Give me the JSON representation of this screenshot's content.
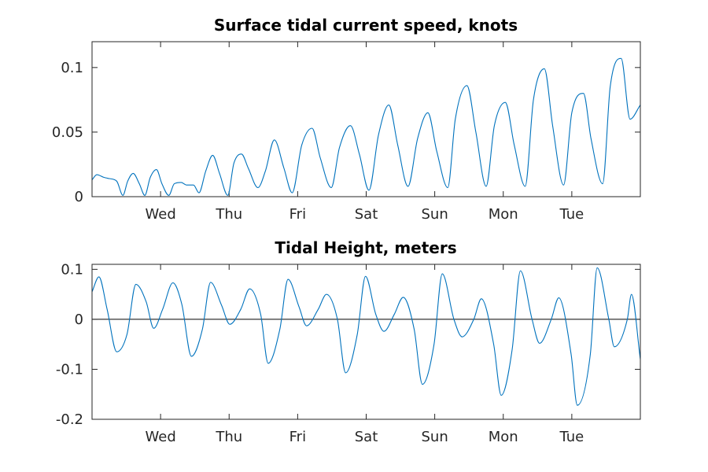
{
  "colors": {
    "series": "#0072BD",
    "axis": "#262626",
    "zero_line": "#000000"
  },
  "chart_data": [
    {
      "type": "line",
      "title": "Surface tidal current speed, knots",
      "xlabel": "",
      "ylabel": "",
      "ylim": [
        0,
        0.12
      ],
      "xlim": [
        0,
        8
      ],
      "grid": false,
      "x_ticks": [
        {
          "value": 1,
          "label": "Wed"
        },
        {
          "value": 2,
          "label": "Thu"
        },
        {
          "value": 3,
          "label": "Fri"
        },
        {
          "value": 4,
          "label": "Sat"
        },
        {
          "value": 5,
          "label": "Sun"
        },
        {
          "value": 6,
          "label": "Mon"
        },
        {
          "value": 7,
          "label": "Tue"
        }
      ],
      "y_ticks": [
        {
          "value": 0,
          "label": "0"
        },
        {
          "value": 0.05,
          "label": "0.05"
        },
        {
          "value": 0.1,
          "label": "0.1"
        }
      ],
      "series": [
        {
          "x": [
            0,
            0.07,
            0.17,
            0.25,
            0.36,
            0.45,
            0.52,
            0.6,
            0.69,
            0.77,
            0.85,
            0.94,
            1.02,
            1.12,
            1.2,
            1.3,
            1.38,
            1.48,
            1.56,
            1.66,
            1.76,
            1.86,
            1.98,
            2.07,
            2.18,
            2.28,
            2.42,
            2.53,
            2.66,
            2.8,
            2.92,
            3.06,
            3.21,
            3.33,
            3.49,
            3.61,
            3.77,
            3.9,
            4.04,
            4.18,
            4.33,
            4.46,
            4.61,
            4.75,
            4.9,
            5.03,
            5.19,
            5.3,
            5.47,
            5.6,
            5.75,
            5.87,
            6.03,
            6.16,
            6.32,
            6.44,
            6.6,
            6.72,
            6.88,
            7.0,
            7.17,
            7.28,
            7.45,
            7.56,
            7.72,
            7.85,
            8.0
          ],
          "y": [
            0.013,
            0.017,
            0.015,
            0.014,
            0.012,
            0.001,
            0.012,
            0.018,
            0.01,
            0.001,
            0.015,
            0.021,
            0.01,
            0.001,
            0.01,
            0.011,
            0.009,
            0.009,
            0.003,
            0.02,
            0.032,
            0.018,
            0.001,
            0.026,
            0.033,
            0.022,
            0.007,
            0.02,
            0.044,
            0.022,
            0.003,
            0.04,
            0.053,
            0.03,
            0.007,
            0.038,
            0.055,
            0.033,
            0.005,
            0.048,
            0.071,
            0.04,
            0.008,
            0.045,
            0.065,
            0.035,
            0.007,
            0.06,
            0.086,
            0.05,
            0.008,
            0.055,
            0.073,
            0.04,
            0.008,
            0.075,
            0.099,
            0.055,
            0.009,
            0.065,
            0.08,
            0.045,
            0.01,
            0.085,
            0.107,
            0.06,
            0.071
          ]
        }
      ]
    },
    {
      "type": "line",
      "title": "Tidal Height, meters",
      "xlabel": "",
      "ylabel": "",
      "ylim": [
        -0.2,
        0.11
      ],
      "xlim": [
        0,
        8
      ],
      "grid": false,
      "zero_line": true,
      "x_ticks": [
        {
          "value": 1,
          "label": "Wed"
        },
        {
          "value": 2,
          "label": "Thu"
        },
        {
          "value": 3,
          "label": "Fri"
        },
        {
          "value": 4,
          "label": "Sat"
        },
        {
          "value": 5,
          "label": "Sun"
        },
        {
          "value": 6,
          "label": "Mon"
        },
        {
          "value": 7,
          "label": "Tue"
        }
      ],
      "y_ticks": [
        {
          "value": -0.2,
          "label": "-0.2"
        },
        {
          "value": -0.1,
          "label": "-0.1"
        },
        {
          "value": 0,
          "label": "0"
        },
        {
          "value": 0.1,
          "label": "0.1"
        }
      ],
      "series": [
        {
          "x": [
            0,
            0.1,
            0.22,
            0.36,
            0.51,
            0.64,
            0.79,
            0.9,
            1.03,
            1.18,
            1.31,
            1.45,
            1.61,
            1.73,
            1.89,
            2.01,
            2.17,
            2.3,
            2.46,
            2.57,
            2.74,
            2.86,
            3.02,
            3.13,
            3.3,
            3.42,
            3.58,
            3.7,
            3.87,
            3.99,
            4.14,
            4.26,
            4.41,
            4.54,
            4.7,
            4.82,
            4.99,
            5.11,
            5.28,
            5.4,
            5.57,
            5.68,
            5.86,
            5.97,
            6.13,
            6.25,
            6.42,
            6.53,
            6.7,
            6.81,
            6.99,
            7.08,
            7.27,
            7.37,
            7.54,
            7.62,
            7.81,
            7.87,
            8.0
          ],
          "y": [
            0.055,
            0.085,
            0.02,
            -0.065,
            -0.03,
            0.07,
            0.035,
            -0.018,
            0.02,
            0.073,
            0.03,
            -0.074,
            -0.02,
            0.074,
            0.028,
            -0.01,
            0.02,
            0.061,
            0.01,
            -0.088,
            -0.02,
            0.08,
            0.025,
            -0.013,
            0.02,
            0.05,
            0.0,
            -0.107,
            -0.03,
            0.086,
            0.01,
            -0.024,
            0.01,
            0.044,
            -0.02,
            -0.13,
            -0.05,
            0.091,
            0.0,
            -0.035,
            0.0,
            0.041,
            -0.05,
            -0.152,
            -0.06,
            0.097,
            0.0,
            -0.048,
            0.0,
            0.043,
            -0.07,
            -0.172,
            -0.07,
            0.103,
            0.0,
            -0.055,
            0.0,
            0.05,
            -0.08
          ]
        }
      ]
    }
  ]
}
